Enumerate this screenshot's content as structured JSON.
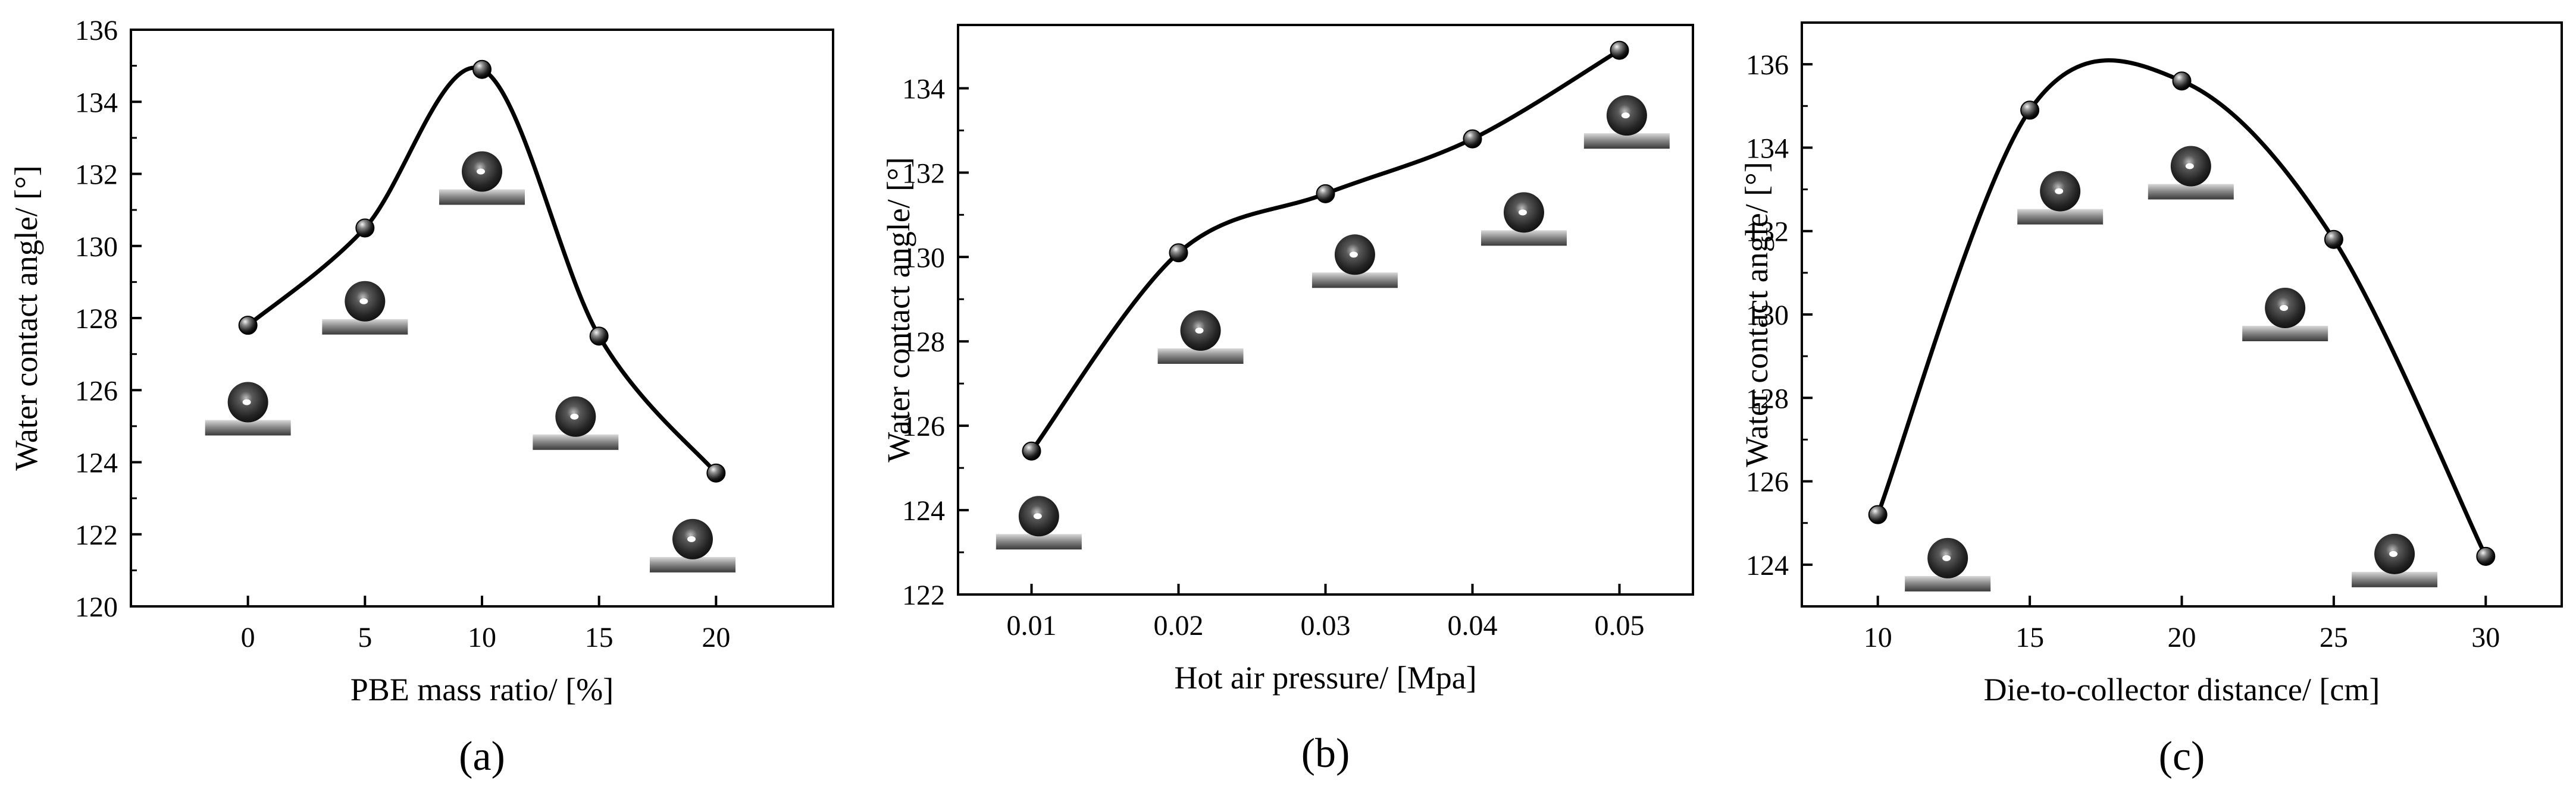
{
  "chart_data": [
    {
      "type": "scatter",
      "panel": "(a)",
      "xlabel": "PBE mass ratio/ [%]",
      "ylabel": "Water contact angle/ [°]",
      "xlim": [
        -5,
        25
      ],
      "ylim": [
        120,
        136
      ],
      "xticks": [
        0,
        5,
        10,
        15,
        20
      ],
      "yticks": [
        120,
        122,
        124,
        126,
        128,
        130,
        132,
        134,
        136
      ],
      "x": [
        0,
        5,
        10,
        15,
        20
      ],
      "y": [
        127.8,
        130.5,
        134.9,
        127.5,
        123.7
      ],
      "insets": [
        {
          "x": 0,
          "y": 125.6
        },
        {
          "x": 5,
          "y": 128.4
        },
        {
          "x": 10,
          "y": 132.0
        },
        {
          "x": 14,
          "y": 125.2
        },
        {
          "x": 19,
          "y": 121.8
        }
      ]
    },
    {
      "type": "scatter",
      "panel": "(b)",
      "xlabel": "Hot air pressure/ [Mpa]",
      "ylabel": "Water contact angle/ [°]",
      "xlim": [
        0.005,
        0.055
      ],
      "ylim": [
        122,
        135.5
      ],
      "xticks": [
        0.01,
        0.02,
        0.03,
        0.04,
        0.05
      ],
      "xtick_labels": [
        "0.01",
        "0.02",
        "0.03",
        "0.04",
        "0.05"
      ],
      "yticks": [
        122,
        124,
        126,
        128,
        130,
        132,
        134
      ],
      "x": [
        0.01,
        0.02,
        0.03,
        0.04,
        0.05
      ],
      "y": [
        125.4,
        130.1,
        131.5,
        132.8,
        134.9
      ],
      "insets": [
        {
          "x": 0.0105,
          "y": 123.8
        },
        {
          "x": 0.0215,
          "y": 128.2
        },
        {
          "x": 0.032,
          "y": 130.0
        },
        {
          "x": 0.0435,
          "y": 131.0
        },
        {
          "x": 0.0505,
          "y": 133.3
        }
      ]
    },
    {
      "type": "scatter",
      "panel": "(c)",
      "xlabel": "Die-to-collector distance/ [cm]",
      "ylabel": "Water contact angle/ [°]",
      "xlim": [
        7.5,
        32.5
      ],
      "ylim": [
        123,
        137
      ],
      "xticks": [
        10,
        15,
        20,
        25,
        30
      ],
      "yticks": [
        124,
        126,
        128,
        130,
        132,
        134,
        136
      ],
      "x": [
        10,
        15,
        20,
        25,
        30
      ],
      "y": [
        125.2,
        134.9,
        135.6,
        131.8,
        124.2
      ],
      "insets": [
        {
          "x": 12.3,
          "y": 124.1
        },
        {
          "x": 16,
          "y": 132.9
        },
        {
          "x": 20.3,
          "y": 133.5
        },
        {
          "x": 23.4,
          "y": 130.1
        },
        {
          "x": 27,
          "y": 124.2
        }
      ]
    }
  ]
}
